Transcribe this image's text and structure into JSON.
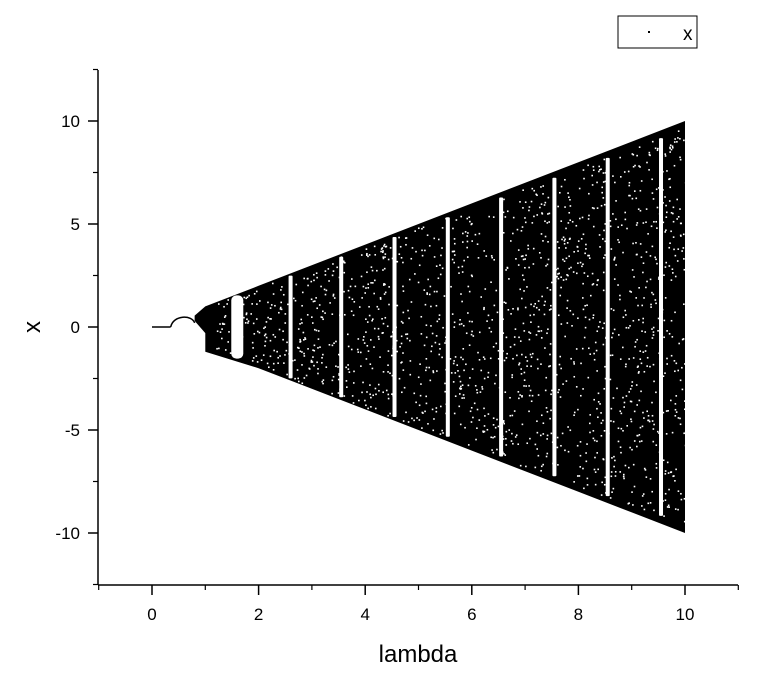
{
  "chart_data": {
    "type": "scatter",
    "xlabel": "lambda",
    "ylabel": "x",
    "xlim": [
      -1,
      11
    ],
    "ylim": [
      -12.5,
      12.5
    ],
    "xticks": [
      0,
      2,
      4,
      6,
      8,
      10
    ],
    "xtick_labels": [
      "0",
      "2",
      "4",
      "6",
      "8",
      "10"
    ],
    "yticks": [
      -10,
      -5,
      0,
      5,
      10
    ],
    "ytick_labels": [
      "-10",
      "-5",
      "0",
      "5",
      "10"
    ],
    "grid": false,
    "legend": {
      "position": "top-right",
      "entries": [
        "x"
      ]
    },
    "series": [
      {
        "name": "x",
        "color": "#000000",
        "envelope": {
          "note_points": [
            {
              "lambda": 0.0,
              "x_min": 0.0,
              "x_max": 0.0
            },
            {
              "lambda": 0.35,
              "x_min": 0.0,
              "x_max": 0.0
            },
            {
              "lambda": 1.0,
              "x_min": -1.2,
              "x_max": 1.0
            },
            {
              "lambda": 2.0,
              "x_min": -2.0,
              "x_max": 2.0
            },
            {
              "lambda": 4.0,
              "x_min": -4.0,
              "x_max": 4.0
            },
            {
              "lambda": 6.0,
              "x_min": -6.0,
              "x_max": 6.0
            },
            {
              "lambda": 8.0,
              "x_min": -8.0,
              "x_max": 8.0
            },
            {
              "lambda": 10.0,
              "x_min": -10.0,
              "x_max": 10.0
            }
          ]
        },
        "periodic_windows_lambda": [
          1.6,
          2.6,
          3.55,
          4.55,
          5.55,
          6.55,
          7.55,
          8.55,
          9.55
        ]
      }
    ]
  },
  "colors": {
    "background": "#ffffff",
    "ink": "#000000"
  }
}
